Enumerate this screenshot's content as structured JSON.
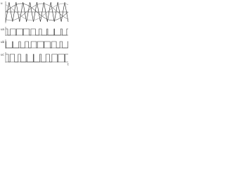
{
  "panels": [
    {
      "label": "u"
    },
    {
      "label": "ua"
    },
    {
      "label": "ub"
    },
    {
      "label": "uc"
    }
  ],
  "time_label": "t"
}
